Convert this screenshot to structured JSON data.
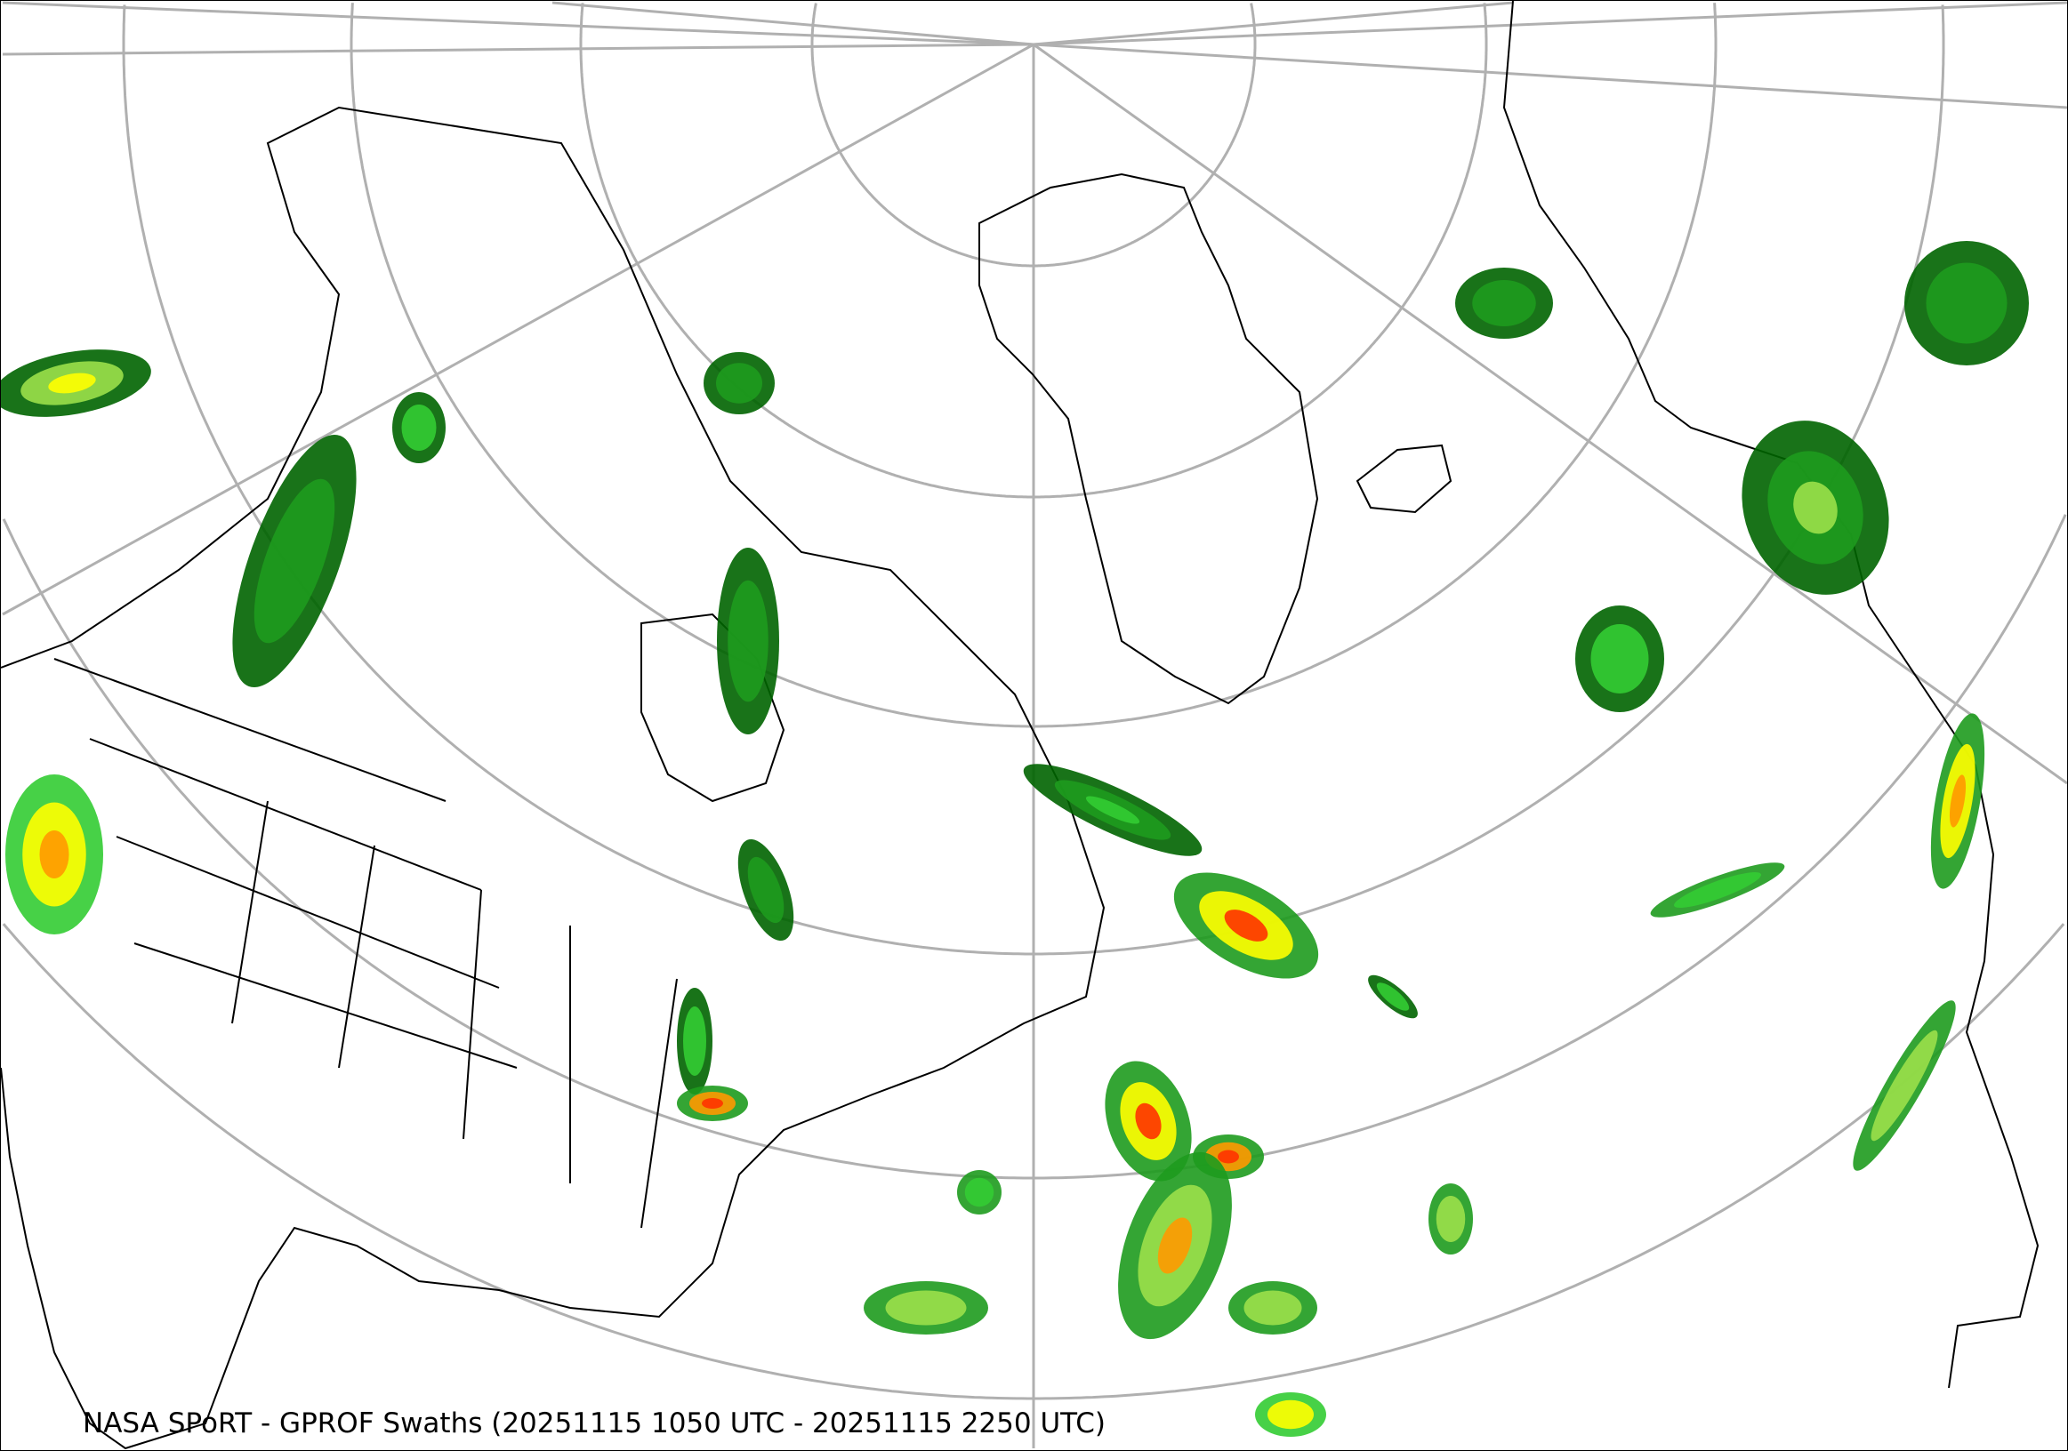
{
  "map": {
    "caption": "NASA SPoRT - GPROF Swaths (20251115 1050 UTC - 20251115 2250 UTC)",
    "projection": "polar stereographic",
    "graticule_color": "#b0b0b0",
    "coastline_color": "#000000",
    "precip_colors": [
      "#006400",
      "#1e9b1e",
      "#33cc33",
      "#9be04a",
      "#ffff00",
      "#ff9900",
      "#ff3300"
    ]
  }
}
